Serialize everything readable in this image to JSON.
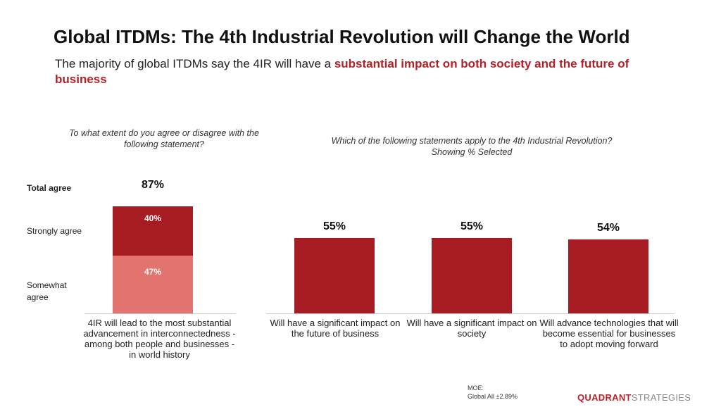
{
  "header": {
    "title": "Global ITDMs: The 4th Industrial Revolution will Change the World",
    "subtitle_plain": "The majority of global ITDMs say the 4IR will have a ",
    "subtitle_highlight": "substantial impact on both society and the future of business"
  },
  "chart_data": [
    {
      "type": "bar",
      "stacked": true,
      "question": "To what extent do you agree or disagree with the following statement?",
      "total_label": "Total agree",
      "total_value_label": "87%",
      "categories": [
        "4IR will lead to the most substantial advancement in interconnectedness - among both people and businesses - in world history"
      ],
      "series": [
        {
          "name": "Strongly agree",
          "values": [
            40
          ],
          "label": "40%",
          "color": "#a61c22"
        },
        {
          "name": "Somewhat agree",
          "values": [
            47
          ],
          "label": "47%",
          "color": "#e3736f"
        }
      ],
      "ylim": [
        0,
        100
      ]
    },
    {
      "type": "bar",
      "question_line1": "Which of the following statements apply to the 4th Industrial Revolution?",
      "question_line2": "Showing % Selected",
      "categories": [
        "Will have a significant impact on the future of business",
        "Will have a significant impact on society",
        "Will advance technologies that will become essential for businesses to adopt moving forward"
      ],
      "values": [
        55,
        55,
        54
      ],
      "value_labels": [
        "55%",
        "55%",
        "54%"
      ],
      "color": "#a61c22",
      "ylim": [
        0,
        100
      ]
    }
  ],
  "footer": {
    "moe_label": "MOE:",
    "moe_value": "Global All ±2.89%",
    "logo_part1": "QUADRANT",
    "logo_part2": "STRATEGIES"
  }
}
